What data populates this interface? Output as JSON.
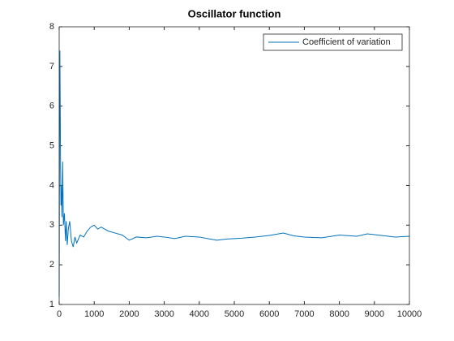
{
  "chart_data": {
    "type": "line",
    "title": "Oscillator function",
    "x": [
      0,
      10,
      20,
      30,
      40,
      50,
      60,
      80,
      100,
      120,
      150,
      180,
      200,
      230,
      260,
      300,
      350,
      400,
      450,
      500,
      600,
      700,
      800,
      900,
      1000,
      1100,
      1200,
      1400,
      1600,
      1800,
      2000,
      2200,
      2500,
      2800,
      3000,
      3300,
      3600,
      4000,
      4300,
      4500,
      4800,
      5200,
      5600,
      6000,
      6400,
      6700,
      7000,
      7500,
      8000,
      8500,
      8800,
      9200,
      9600,
      10000
    ],
    "series": [
      {
        "name": "Coefficient of variation",
        "color": "#0072bd",
        "values": [
          1.2,
          5.5,
          7.4,
          6.0,
          4.5,
          3.5,
          4.0,
          3.2,
          4.6,
          3.0,
          3.3,
          2.6,
          3.1,
          2.5,
          2.9,
          3.1,
          2.6,
          2.45,
          2.7,
          2.55,
          2.75,
          2.7,
          2.85,
          2.95,
          3.0,
          2.9,
          2.95,
          2.85,
          2.8,
          2.75,
          2.62,
          2.7,
          2.68,
          2.72,
          2.7,
          2.66,
          2.72,
          2.7,
          2.65,
          2.62,
          2.65,
          2.67,
          2.7,
          2.74,
          2.8,
          2.73,
          2.7,
          2.68,
          2.75,
          2.72,
          2.78,
          2.74,
          2.7,
          2.72
        ]
      }
    ],
    "xlim": [
      0,
      10000
    ],
    "xticks": [
      0,
      1000,
      2000,
      3000,
      4000,
      5000,
      6000,
      7000,
      8000,
      9000,
      10000
    ],
    "ylim": [
      1,
      8
    ],
    "yticks": [
      1,
      2,
      3,
      4,
      5,
      6,
      7,
      8
    ],
    "grid": false,
    "legend": "northeast"
  }
}
